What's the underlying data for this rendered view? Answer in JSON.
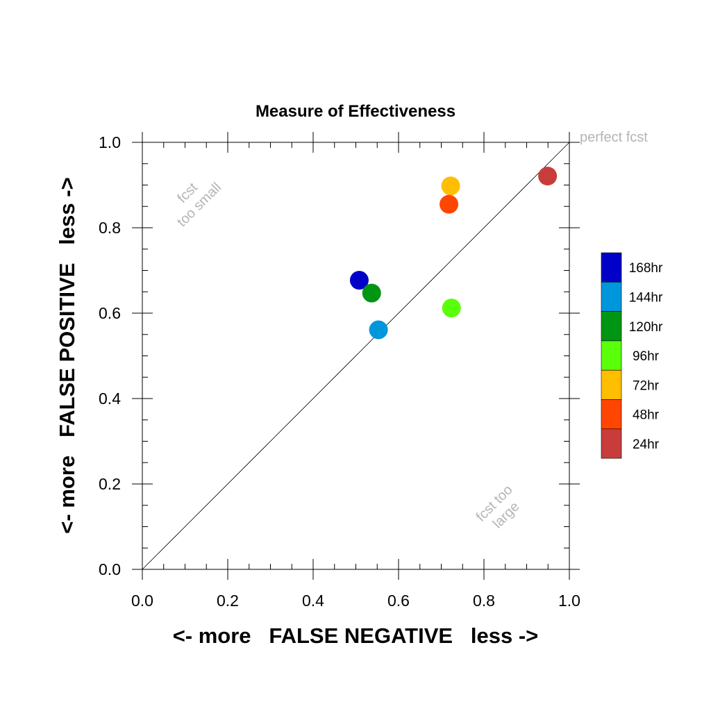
{
  "chart_data": {
    "type": "scatter",
    "title": "Measure of Effectiveness",
    "xlabel": "<- more   FALSE NEGATIVE   less ->",
    "ylabel": "<- more   FALSE POSITIVE   less ->",
    "xlim": [
      0,
      1
    ],
    "ylim": [
      0,
      1
    ],
    "x_ticks": [
      "0.0",
      "0.2",
      "0.4",
      "0.6",
      "0.8",
      "1.0"
    ],
    "y_ticks": [
      "0.0",
      "0.2",
      "0.4",
      "0.6",
      "0.8",
      "1.0"
    ],
    "diagonal": true,
    "grid": false,
    "legend_position": "right",
    "annotations": {
      "perfect": "perfect fcst",
      "too_small": [
        "fcst",
        "too small"
      ],
      "too_large": [
        "fcst too",
        "large"
      ]
    },
    "series": [
      {
        "name": "168hr",
        "color": "#0000c8",
        "x": 0.508,
        "y": 0.677
      },
      {
        "name": "144hr",
        "color": "#0096dc",
        "x": 0.553,
        "y": 0.561
      },
      {
        "name": "120hr",
        "color": "#009614",
        "x": 0.537,
        "y": 0.647
      },
      {
        "name": "96hr",
        "color": "#5aff0a",
        "x": 0.724,
        "y": 0.612
      },
      {
        "name": "72hr",
        "color": "#ffbe00",
        "x": 0.722,
        "y": 0.898
      },
      {
        "name": "48hr",
        "color": "#ff4600",
        "x": 0.718,
        "y": 0.855
      },
      {
        "name": "24hr",
        "color": "#c83c3c",
        "x": 0.949,
        "y": 0.921
      }
    ]
  }
}
